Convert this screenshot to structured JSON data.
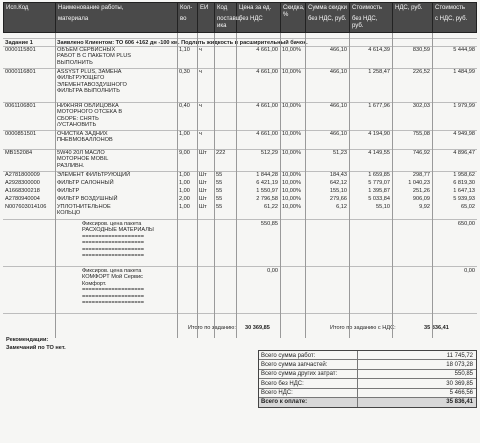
{
  "headers": [
    {
      "key": "code",
      "lines": [
        "Исп.Код"
      ]
    },
    {
      "key": "name",
      "lines": [
        "Наименование работы,",
        "",
        "материала"
      ]
    },
    {
      "key": "qty",
      "lines": [
        "Кол-",
        "",
        "во"
      ]
    },
    {
      "key": "unit",
      "lines": [
        "ЕИ"
      ]
    },
    {
      "key": "supcode",
      "lines": [
        "Код",
        "",
        "поставщ",
        "ика"
      ]
    },
    {
      "key": "price",
      "lines": [
        "Цена за ед.",
        "",
        "без НДС"
      ]
    },
    {
      "key": "disc",
      "lines": [
        "Скидка,",
        "%"
      ]
    },
    {
      "key": "discsum",
      "lines": [
        "Сумма скидки",
        "",
        "без НДС, руб."
      ]
    },
    {
      "key": "cost",
      "lines": [
        "Стоимость",
        "",
        "без НДС, руб."
      ]
    },
    {
      "key": "vat",
      "lines": [
        "НДС, руб."
      ]
    },
    {
      "key": "total",
      "lines": [
        "Стоимость",
        "",
        "с НДС, руб."
      ]
    }
  ],
  "task": {
    "label": "Задание 1",
    "note": "Заявлено Клиентом: ТО 606 +162 дн -100 км. Подлить жидкость в расширительный бачок."
  },
  "rows": [
    {
      "code": "0000115801",
      "name": [
        "ОБЪЕМ СЕРВИСНЫХ",
        "РАБОТ В С ПАКЕТОМ PLUS",
        "ВЫПОЛНИТЬ"
      ],
      "qty": "1,10",
      "unit": "ч",
      "sup": "",
      "price": "4 661,00",
      "disc": "10,00%",
      "discsum": "466,10",
      "cost": "4 614,39",
      "vat": "830,59",
      "total": "5 444,98"
    },
    {
      "code": "0000116801",
      "name": [
        "ASSYST PLUS, ЗАМЕНА",
        "ФИЛЬТРУЮЩЕГО",
        "ЭЛЕМЕНТАВОЗДУШНОГО",
        "ФИЛЬТРА ВЫПОЛНИТЬ"
      ],
      "qty": "0,30",
      "unit": "ч",
      "sup": "",
      "price": "4 661,00",
      "disc": "10,00%",
      "discsum": "466,10",
      "cost": "1 258,47",
      "vat": "226,52",
      "total": "1 484,99"
    },
    {
      "code": "0061106801",
      "name": [
        "НИЖНЯЯ ОБЛИЦОВКА",
        "МОТОРНОГО ОТСЕКА В",
        "СБОРЕ: СНЯТЬ",
        "/УСТАНОВИТЬ"
      ],
      "qty": "0,40",
      "unit": "ч",
      "sup": "",
      "price": "4 661,00",
      "disc": "10,00%",
      "discsum": "466,10",
      "cost": "1 677,96",
      "vat": "302,03",
      "total": "1 979,99"
    },
    {
      "code": "0000851501",
      "name": [
        "ОЧИСТКА ЗАДНИХ",
        "ПНЕВМОБАЛЛОНОВ"
      ],
      "qty": "1,00",
      "unit": "ч",
      "sup": "",
      "price": "4 661,00",
      "disc": "10,00%",
      "discsum": "466,10",
      "cost": "4 194,90",
      "vat": "755,08",
      "total": "4 949,98"
    },
    {
      "code": "MB152084",
      "name": [
        "5W40 20Л МАСЛО",
        "МОТОРНОЕ MOBIL",
        "РАЗЛИВН."
      ],
      "qty": "9,00",
      "unit": "Шт",
      "sup": "222",
      "price": "512,29",
      "disc": "10,00%",
      "discsum": "51,23",
      "cost": "4 149,55",
      "vat": "746,92",
      "total": "4 896,47"
    },
    {
      "code": "A2781800009",
      "name": [
        "ЭЛЕМЕНТ ФИЛЬТРУЮЩИЙ"
      ],
      "qty": "1,00",
      "unit": "Шт",
      "sup": "55",
      "price": "1 844,28",
      "disc": "10,00%",
      "discsum": "184,43",
      "cost": "1 659,85",
      "vat": "298,77",
      "total": "1 958,62"
    },
    {
      "code": "A2928300000",
      "name": [
        "ФИЛЬТР САЛОННЫЙ"
      ],
      "qty": "1,00",
      "unit": "Шт",
      "sup": "55",
      "price": "6 421,19",
      "disc": "10,00%",
      "discsum": "642,12",
      "cost": "5 779,07",
      "vat": "1 040,23",
      "total": "6 819,30"
    },
    {
      "code": "A1668300218",
      "name": [
        "ФИЛЬТР"
      ],
      "qty": "1,00",
      "unit": "Шт",
      "sup": "55",
      "price": "1 550,97",
      "disc": "10,00%",
      "discsum": "155,10",
      "cost": "1 395,87",
      "vat": "251,26",
      "total": "1 647,13"
    },
    {
      "code": "A2780940004",
      "name": [
        "ФИЛЬТР ВОЗДУШНЫЙ"
      ],
      "qty": "2,00",
      "unit": "Шт",
      "sup": "55",
      "price": "2 796,58",
      "disc": "10,00%",
      "discsum": "279,66",
      "cost": "5 033,84",
      "vat": "906,09",
      "total": "5 939,93"
    },
    {
      "code": "N007603014106",
      "name": [
        "УПЛОТНИТЕЛЬНОЕ",
        "КОЛЬЦО"
      ],
      "qty": "1,00",
      "unit": "Шт",
      "sup": "55",
      "price": "61,22",
      "disc": "10,00%",
      "discsum": "6,12",
      "cost": "55,10",
      "vat": "9,92",
      "total": "65,02"
    }
  ],
  "packages": [
    {
      "name": [
        "Фиксиров. цена пакета",
        "РАСХОДНЫЕ МАТЕРИАЛЫ",
        "===================",
        "===================",
        "===================",
        "==================="
      ],
      "price": "550,85",
      "total": "650,00"
    },
    {
      "name": [
        "Фиксиров. цена пакета",
        "КОМФОРТ Мой Сервис",
        "Комфорт.",
        "===================",
        "===================",
        "==================="
      ],
      "price": "0,00",
      "total": "0,00"
    }
  ],
  "totals": {
    "task_label": "Итого по заданию:",
    "task_value": "30 369,85",
    "task_vat_label": "Итого по заданию с НДС:",
    "task_vat_value": "35 836,41"
  },
  "recommendations": {
    "title": "Рекомендации:",
    "text": "Замечаний по ТО нет."
  },
  "summary": [
    {
      "label": "Всего сумма работ:",
      "value": "11 745,72"
    },
    {
      "label": "Всего сумма запчастей:",
      "value": "18 073,28"
    },
    {
      "label": "Всего сумма других затрат:",
      "value": "550,85"
    },
    {
      "label": "Всего без НДС:",
      "value": "30 369,85"
    },
    {
      "label": "Всего НДС:",
      "value": "5 466,56"
    },
    {
      "label": "Всего к оплате:",
      "value": "35 836,41"
    }
  ]
}
